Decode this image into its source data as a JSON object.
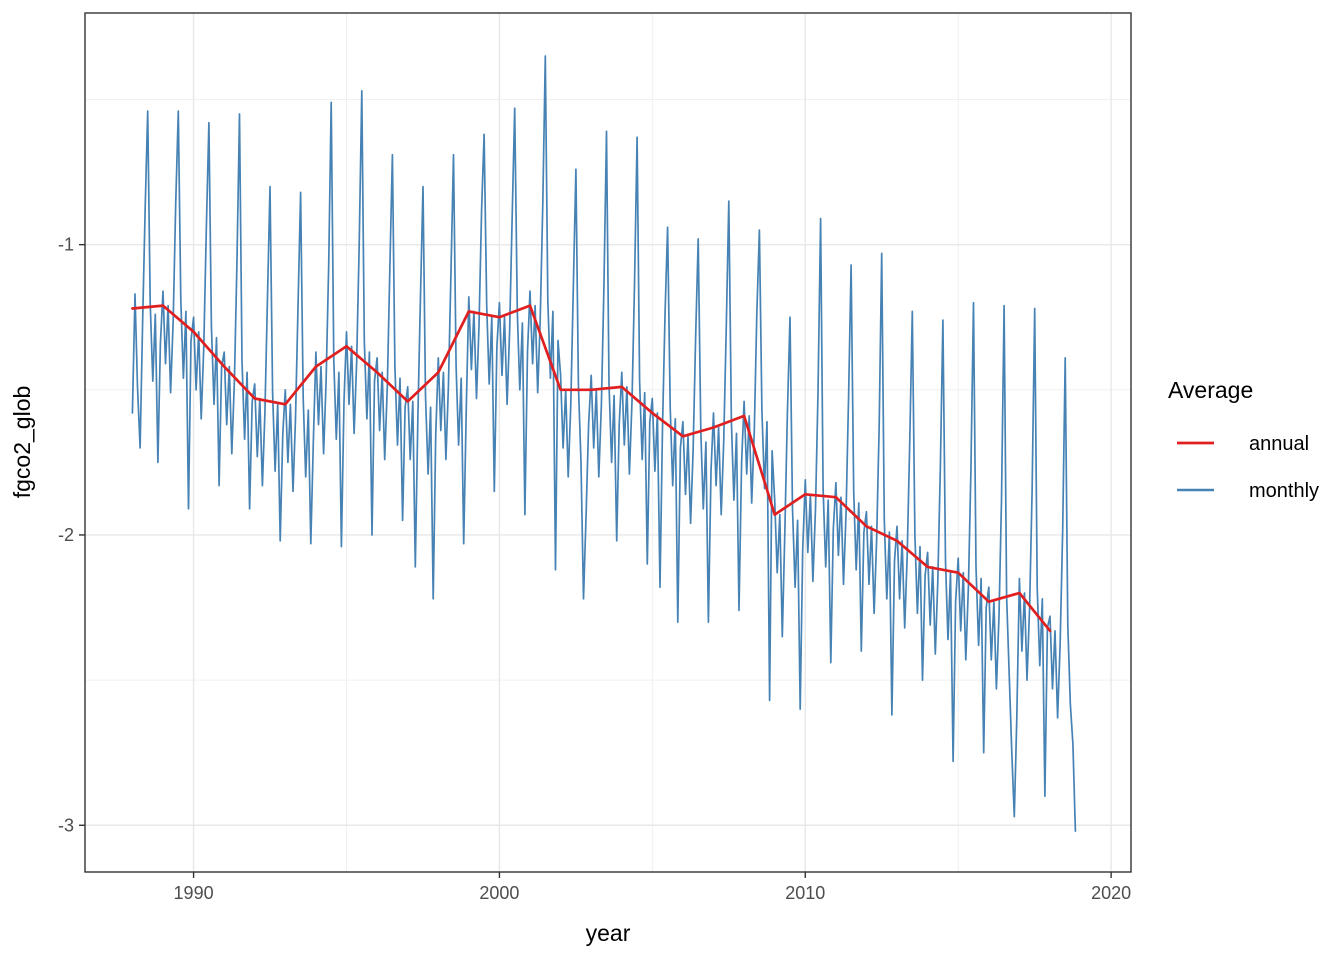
{
  "colors": {
    "background": "#FFFFFF",
    "panel_background": "#FFFFFF",
    "panel_border": "#333333",
    "grid_major": "#E8E8E8",
    "grid_minor": "#F0F0F0",
    "tick_mark": "#333333",
    "tick_label": "#4D4D4D",
    "annual_red": "#E02020",
    "monthly_blue": "#4682B4"
  },
  "chart_data": {
    "type": "line",
    "title": "",
    "xlabel": "year",
    "ylabel": "fgco2_glob",
    "xlim": [
      1986.45,
      2020.65
    ],
    "ylim": [
      -3.161,
      -0.202
    ],
    "grid": true,
    "x_axis": {
      "major_ticks": [
        1990,
        2000,
        2010,
        2020
      ],
      "major_labels": [
        "1990",
        "2000",
        "2010",
        "2020"
      ],
      "minor_ticks": [
        1995,
        2005,
        2015
      ]
    },
    "y_axis": {
      "major_ticks": [
        -1,
        -2,
        -3
      ],
      "major_labels": [
        "-1",
        "-2",
        "-3"
      ],
      "minor_ticks": [
        -0.5,
        -1.5,
        -2.5
      ]
    },
    "legend": {
      "title": "Average",
      "position": "right",
      "entries": [
        {
          "label": "annual",
          "color": "#E02020"
        },
        {
          "label": "monthly",
          "color": "#4682B4"
        }
      ]
    },
    "series": [
      {
        "name": "annual",
        "color": "#E02020",
        "stroke_width": 2.7,
        "years": [
          1988,
          1989,
          1990,
          1991,
          1992,
          1993,
          1994,
          1995,
          1996,
          1997,
          1998,
          1999,
          2000,
          2001,
          2002,
          2003,
          2004,
          2005,
          2006,
          2007,
          2008,
          2009,
          2010,
          2011,
          2012,
          2013,
          2014,
          2015,
          2016,
          2017,
          2018
        ],
        "values": [
          -1.22,
          -1.21,
          -1.3,
          -1.42,
          -1.53,
          -1.55,
          -1.42,
          -1.35,
          -1.44,
          -1.54,
          -1.44,
          -1.23,
          -1.25,
          -1.21,
          -1.5,
          -1.5,
          -1.49,
          -1.58,
          -1.66,
          -1.63,
          -1.59,
          -1.93,
          -1.86,
          -1.87,
          -1.97,
          -2.02,
          -2.11,
          -2.13,
          -2.23,
          -2.2,
          -2.33
        ]
      },
      {
        "name": "monthly",
        "color": "#4682B4",
        "stroke_width": 1.7,
        "monthly_by_year": [
          {
            "year": 1988,
            "values": [
              -1.58,
              -1.17,
              -1.49,
              -1.7,
              -1.27,
              -0.87,
              -0.54,
              -1.2,
              -1.47,
              -1.24,
              -1.75,
              -1.34
            ]
          },
          {
            "year": 1989,
            "values": [
              -1.16,
              -1.41,
              -1.21,
              -1.51,
              -1.26,
              -0.86,
              -0.54,
              -1.19,
              -1.46,
              -1.23,
              -1.91,
              -1.33
            ]
          },
          {
            "year": 1990,
            "values": [
              -1.25,
              -1.5,
              -1.3,
              -1.6,
              -1.35,
              -0.95,
              -0.58,
              -1.28,
              -1.55,
              -1.32,
              -1.83,
              -1.42
            ]
          },
          {
            "year": 1991,
            "values": [
              -1.37,
              -1.62,
              -1.42,
              -1.72,
              -1.47,
              -1.07,
              -0.55,
              -1.4,
              -1.67,
              -1.44,
              -1.91,
              -1.54
            ]
          },
          {
            "year": 1992,
            "values": [
              -1.48,
              -1.73,
              -1.53,
              -1.83,
              -1.58,
              -1.18,
              -0.8,
              -1.51,
              -1.78,
              -1.55,
              -2.02,
              -1.65
            ]
          },
          {
            "year": 1993,
            "values": [
              -1.5,
              -1.75,
              -1.55,
              -1.85,
              -1.6,
              -1.2,
              -0.82,
              -1.53,
              -1.8,
              -1.57,
              -2.03,
              -1.67
            ]
          },
          {
            "year": 1994,
            "values": [
              -1.37,
              -1.62,
              -1.42,
              -1.72,
              -1.47,
              -1.07,
              -0.51,
              -1.4,
              -1.67,
              -1.44,
              -2.04,
              -1.54
            ]
          },
          {
            "year": 1995,
            "values": [
              -1.3,
              -1.55,
              -1.35,
              -1.65,
              -1.4,
              -1.0,
              -0.47,
              -1.33,
              -1.6,
              -1.37,
              -2.0,
              -1.47
            ]
          },
          {
            "year": 1996,
            "values": [
              -1.39,
              -1.64,
              -1.44,
              -1.74,
              -1.49,
              -1.09,
              -0.69,
              -1.42,
              -1.69,
              -1.46,
              -1.95,
              -1.56
            ]
          },
          {
            "year": 1997,
            "values": [
              -1.49,
              -1.74,
              -1.54,
              -2.11,
              -1.59,
              -1.19,
              -0.8,
              -1.52,
              -1.79,
              -1.56,
              -2.22,
              -1.66
            ]
          },
          {
            "year": 1998,
            "values": [
              -1.39,
              -1.64,
              -1.44,
              -1.74,
              -1.49,
              -1.09,
              -0.69,
              -1.42,
              -1.69,
              -1.46,
              -2.03,
              -1.56
            ]
          },
          {
            "year": 1999,
            "values": [
              -1.18,
              -1.43,
              -1.23,
              -1.53,
              -1.28,
              -0.88,
              -0.62,
              -1.21,
              -1.48,
              -1.25,
              -1.85,
              -1.35
            ]
          },
          {
            "year": 2000,
            "values": [
              -1.2,
              -1.45,
              -1.25,
              -1.55,
              -1.3,
              -0.9,
              -0.53,
              -1.23,
              -1.5,
              -1.27,
              -1.93,
              -1.37
            ]
          },
          {
            "year": 2001,
            "values": [
              -1.16,
              -1.41,
              -1.21,
              -1.51,
              -1.26,
              -0.86,
              -0.35,
              -1.19,
              -1.46,
              -1.23,
              -2.12,
              -1.33
            ]
          },
          {
            "year": 2002,
            "values": [
              -1.45,
              -1.7,
              -1.5,
              -1.8,
              -1.55,
              -1.15,
              -0.74,
              -1.48,
              -1.75,
              -2.22,
              -1.93,
              -1.62
            ]
          },
          {
            "year": 2003,
            "values": [
              -1.45,
              -1.7,
              -1.5,
              -1.8,
              -1.55,
              -1.15,
              -0.61,
              -1.48,
              -1.75,
              -1.52,
              -2.02,
              -1.62
            ]
          },
          {
            "year": 2004,
            "values": [
              -1.44,
              -1.69,
              -1.49,
              -1.79,
              -1.54,
              -1.14,
              -0.63,
              -1.47,
              -1.74,
              -1.51,
              -2.1,
              -1.61
            ]
          },
          {
            "year": 2005,
            "values": [
              -1.53,
              -1.78,
              -1.58,
              -2.18,
              -1.63,
              -1.23,
              -0.94,
              -1.56,
              -1.83,
              -1.6,
              -2.3,
              -1.7
            ]
          },
          {
            "year": 2006,
            "values": [
              -1.61,
              -1.86,
              -1.66,
              -1.96,
              -1.71,
              -1.31,
              -0.98,
              -1.64,
              -1.91,
              -1.68,
              -2.3,
              -1.78
            ]
          },
          {
            "year": 2007,
            "values": [
              -1.58,
              -1.83,
              -1.63,
              -1.93,
              -1.68,
              -1.28,
              -0.85,
              -1.61,
              -1.88,
              -1.65,
              -2.26,
              -1.75
            ]
          },
          {
            "year": 2008,
            "values": [
              -1.54,
              -1.79,
              -1.59,
              -1.89,
              -1.64,
              -1.24,
              -0.95,
              -1.57,
              -1.84,
              -1.61,
              -2.57,
              -1.71
            ]
          },
          {
            "year": 2009,
            "values": [
              -1.88,
              -2.13,
              -1.93,
              -2.35,
              -1.98,
              -1.58,
              -1.25,
              -1.91,
              -2.18,
              -1.95,
              -2.6,
              -2.05
            ]
          },
          {
            "year": 2010,
            "values": [
              -1.81,
              -2.06,
              -1.86,
              -2.16,
              -1.91,
              -1.51,
              -0.91,
              -1.84,
              -2.11,
              -1.88,
              -2.44,
              -1.98
            ]
          },
          {
            "year": 2011,
            "values": [
              -1.82,
              -2.07,
              -1.87,
              -2.17,
              -1.92,
              -1.52,
              -1.07,
              -1.85,
              -2.12,
              -1.89,
              -2.4,
              -1.99
            ]
          },
          {
            "year": 2012,
            "values": [
              -1.92,
              -2.17,
              -1.97,
              -2.27,
              -2.02,
              -1.62,
              -1.03,
              -1.95,
              -2.22,
              -1.99,
              -2.62,
              -2.09
            ]
          },
          {
            "year": 2013,
            "values": [
              -1.97,
              -2.22,
              -2.02,
              -2.32,
              -2.07,
              -1.67,
              -1.23,
              -2.0,
              -2.27,
              -2.04,
              -2.5,
              -2.14
            ]
          },
          {
            "year": 2014,
            "values": [
              -2.06,
              -2.31,
              -2.11,
              -2.41,
              -2.16,
              -1.76,
              -1.26,
              -2.09,
              -2.36,
              -2.13,
              -2.78,
              -2.23
            ]
          },
          {
            "year": 2015,
            "values": [
              -2.08,
              -2.33,
              -2.13,
              -2.43,
              -2.18,
              -1.78,
              -1.2,
              -2.11,
              -2.38,
              -2.15,
              -2.75,
              -2.25
            ]
          },
          {
            "year": 2016,
            "values": [
              -2.18,
              -2.43,
              -2.23,
              -2.53,
              -2.28,
              -1.88,
              -1.21,
              -2.21,
              -2.48,
              -2.74,
              -2.97,
              -2.63
            ]
          },
          {
            "year": 2017,
            "values": [
              -2.15,
              -2.4,
              -2.2,
              -2.5,
              -2.25,
              -1.85,
              -1.22,
              -2.18,
              -2.45,
              -2.22,
              -2.9,
              -2.32
            ]
          },
          {
            "year": 2018,
            "values": [
              -2.28,
              -2.53,
              -2.33,
              -2.63,
              -2.38,
              -1.98,
              -1.39,
              -2.31,
              -2.58,
              -2.72,
              -3.02
            ]
          }
        ]
      }
    ]
  }
}
